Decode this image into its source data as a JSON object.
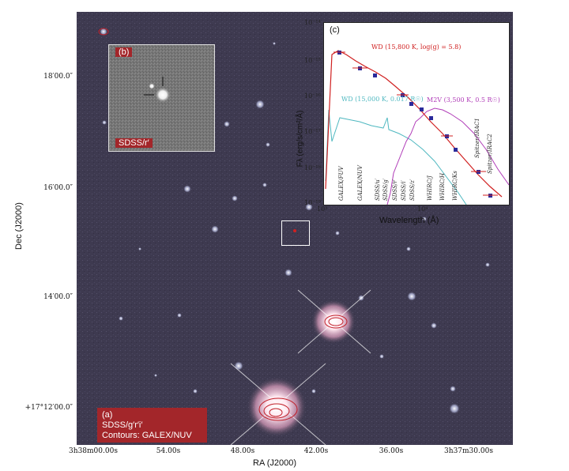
{
  "axes": {
    "ylabel": "Dec (J2000)",
    "xlabel": "RA (J2000)",
    "yticks": [
      "18′00.0″",
      "16′00.0″",
      "14′00.0″",
      "+17°12′00.0″"
    ],
    "xticks": [
      "3h38m00.00s",
      "54.00s",
      "48.00s",
      "42.00s",
      "36.00s",
      "3h37m30.00s"
    ]
  },
  "panel_a": {
    "tag": "(a)",
    "filters": "SDSS/g′r′i′",
    "contours": "Contours: GALEX/NUV"
  },
  "panel_b": {
    "tag": "(b)",
    "filter": "SDSS/r′"
  },
  "panel_c": {
    "tag": "(c)",
    "xlabel": "Wavelength (Å)",
    "ylabel": "Fλ (erg/s/cm²/Å)",
    "yticks": [
      "10⁻¹⁴",
      "10⁻¹⁵",
      "10⁻¹⁶",
      "10⁻¹⁷",
      "10⁻¹⁸",
      "10⁻¹⁹"
    ],
    "xticks": [
      "10³",
      "10⁴"
    ],
    "models": [
      {
        "label": "WD (15,800 K, log(g) = 5.8)",
        "color": "#d02020"
      },
      {
        "label": "WD (15,000 K, 0.017 R☉)",
        "color": "#4fb8c0"
      },
      {
        "label": "M2V (3,500 K, 0.5 R☉)",
        "color": "#b03cb8"
      }
    ],
    "bands": [
      "GALEX/FUV",
      "GALEX/NUV",
      "SDSS/u′",
      "SDSS/g′",
      "SDSS/r′",
      "SDSS/i′",
      "SDSS/z′",
      "WHIRC/J",
      "WHIRC/H",
      "WHIRC/Ks",
      "Spitzer/IRAC1",
      "Spitzer/IRAC2"
    ]
  }
}
